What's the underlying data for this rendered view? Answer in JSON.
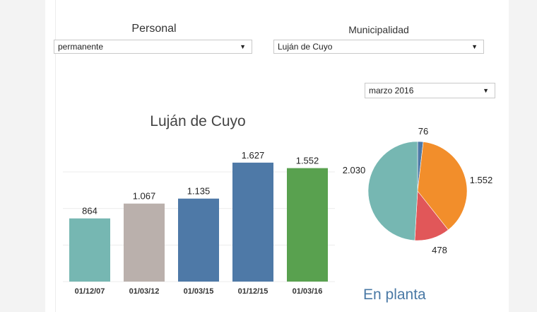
{
  "filters": {
    "personal": {
      "label": "Personal",
      "value": "permanente"
    },
    "municipalidad": {
      "label": "Municipalidad",
      "value": "Luján de Cuyo"
    },
    "fecha": {
      "value": "marzo 2016"
    }
  },
  "chart_data": [
    {
      "type": "bar",
      "title": "Luján de Cuyo",
      "categories": [
        "01/12/07",
        "01/03/12",
        "01/03/15",
        "01/12/15",
        "01/03/16"
      ],
      "values": [
        864,
        1067,
        1135,
        1627,
        1552
      ],
      "value_labels": [
        "864",
        "1.067",
        "1.135",
        "1.627",
        "1.552"
      ],
      "colors": [
        "#76b7b2",
        "#bab0ac",
        "#4e79a7",
        "#4e79a7",
        "#59a14f"
      ],
      "ylim": [
        0,
        1800
      ],
      "grid": true
    },
    {
      "type": "pie",
      "slices": [
        {
          "value": 76,
          "label": "76",
          "color": "#4e79a7"
        },
        {
          "value": 1552,
          "label": "1.552",
          "color": "#f28e2b"
        },
        {
          "value": 478,
          "label": "478",
          "color": "#e15759"
        },
        {
          "value": 2030,
          "label": "2.030",
          "color": "#76b7b2"
        }
      ]
    }
  ],
  "footer": {
    "label": "En planta"
  }
}
